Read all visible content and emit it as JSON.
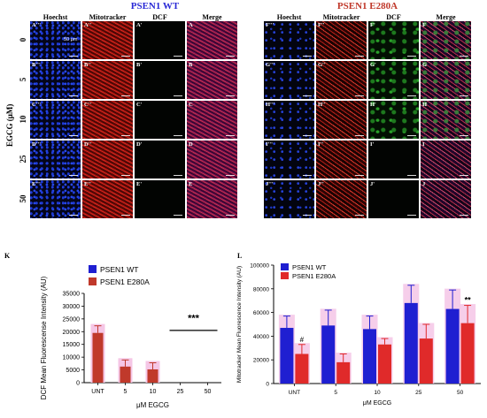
{
  "figure": {
    "left_group_title": "PSEN1 WT",
    "right_group_title": "PSEN1 E280A",
    "left_group_title_color": "#2a2ad6",
    "right_group_title_color": "#c0392b",
    "column_headers": [
      "Hoechst",
      "Mitotracker",
      "DCF",
      "Merge"
    ],
    "row_axis_title": "EGCG (μM)",
    "row_labels": [
      "0",
      "5",
      "10",
      "25",
      "50"
    ],
    "scale_bar_text": "50 μm",
    "left_panel_labels": [
      [
        "A'''",
        "A''",
        "A'",
        "A"
      ],
      [
        "B'''",
        "B''",
        "B'",
        "B"
      ],
      [
        "C'''",
        "C''",
        "C'",
        "C"
      ],
      [
        "D'''",
        "D''",
        "D'",
        "D"
      ],
      [
        "E'''",
        "E''",
        "E'",
        "E"
      ]
    ],
    "right_panel_labels": [
      [
        "F'''",
        "F''",
        "F'",
        "F"
      ],
      [
        "G'''",
        "G''",
        "G'",
        "G"
      ],
      [
        "H'''",
        "H''",
        "H'",
        "H"
      ],
      [
        "I'''",
        "I''",
        "I'",
        "I"
      ],
      [
        "J'''",
        "J''",
        "J'",
        "J"
      ]
    ],
    "right_dcf_green_rows": [
      0,
      1,
      2
    ]
  },
  "chart_data": [
    {
      "panel_label": "K",
      "type": "bar",
      "ylabel": "DCF Mean Fluorescense Intensity (AU)",
      "xlabel": "μM EGCG",
      "categories": [
        "UNT",
        "5",
        "10",
        "25",
        "50"
      ],
      "ylim": [
        0,
        35000
      ],
      "yticks": [
        "0",
        "5000",
        "10000",
        "15000",
        "20000",
        "25000",
        "30000",
        "35000"
      ],
      "legend": [
        "PSEN1 WT",
        "PSEN1 E280A"
      ],
      "legend_position": "top-right",
      "colors": {
        "wt": "#1f1fd1",
        "e280a": "#c0392b",
        "shade": "#f5c6e6"
      },
      "series": [
        {
          "name": "PSEN1 WT",
          "values": [
            0,
            0,
            0,
            0,
            0
          ]
        },
        {
          "name": "PSEN1 E280A",
          "values": [
            19500,
            6300,
            5200,
            0,
            0
          ],
          "errors": [
            2800,
            2600,
            2600,
            0,
            0
          ]
        }
      ],
      "annotation": "***"
    },
    {
      "panel_label": "L",
      "type": "bar",
      "ylabel": "Mitotracker Mean Fluorescence Intensity (AU)",
      "xlabel": "μM EGCG",
      "categories": [
        "UNT",
        "5",
        "10",
        "25",
        "50"
      ],
      "ylim": [
        0,
        100000
      ],
      "yticks": [
        "0",
        "20000",
        "40000",
        "60000",
        "80000",
        "100000"
      ],
      "legend": [
        "PSEN1 WT",
        "PSEN1 E280A"
      ],
      "legend_position": "top-left",
      "colors": {
        "wt": "#1f1fd1",
        "e280a": "#e02a2a",
        "shade": "#f5c6e6"
      },
      "series": [
        {
          "name": "PSEN1 WT",
          "values": [
            47000,
            49000,
            46000,
            68000,
            63000
          ],
          "errors": [
            10000,
            13000,
            11000,
            15000,
            16000
          ]
        },
        {
          "name": "PSEN1 E280A",
          "values": [
            25000,
            18000,
            33000,
            38000,
            51000
          ],
          "errors": [
            8000,
            7000,
            5000,
            12000,
            15000
          ]
        }
      ],
      "annotations": [
        "#",
        "**"
      ]
    }
  ]
}
